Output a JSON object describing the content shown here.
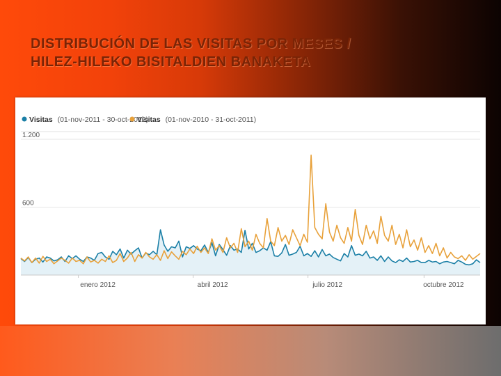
{
  "slide": {
    "title_line1": "DISTRIBUCIÓN DE LAS VISITAS POR MESES /",
    "title_line2": "HILEZ-HILEKO BISITALDIEN BANAKETA"
  },
  "colors": {
    "current_series": "#1a7fa6",
    "previous_series": "#e8a13a",
    "current_fill": "#e4f1f7"
  },
  "chart_data": {
    "type": "line",
    "legend": [
      {
        "name": "Visitas",
        "period": "(01-nov-2011 - 30-oct-2012)"
      },
      {
        "name": "Visitas",
        "period": "(01-nov-2010 - 31-oct-2011)"
      }
    ],
    "y_ticks": [
      "1.200",
      "600"
    ],
    "y_tick_values": [
      1200,
      600
    ],
    "ylim": [
      0,
      1200
    ],
    "x_tick_labels": [
      "enero 2012",
      "abril 2012",
      "julio 2012",
      "octubre 2012"
    ],
    "x_tick_dates": [
      "2012-01-01",
      "2012-04-01",
      "2012-07-01",
      "2012-10-01"
    ],
    "x_range": [
      "2011-11-01",
      "2012-10-30"
    ],
    "grid": "horizontal",
    "series": [
      {
        "name": "Visitas",
        "values": [
          145,
          120,
          155,
          110,
          140,
          150,
          115,
          160,
          150,
          125,
          135,
          160,
          120,
          170,
          145,
          170,
          140,
          120,
          160,
          150,
          130,
          190,
          200,
          160,
          140,
          210,
          180,
          230,
          150,
          220,
          185,
          215,
          240,
          150,
          195,
          180,
          210,
          180,
          400,
          265,
          210,
          250,
          240,
          300,
          160,
          250,
          235,
          260,
          230,
          215,
          265,
          200,
          285,
          170,
          270,
          225,
          175,
          260,
          220,
          230,
          200,
          395,
          230,
          280,
          200,
          215,
          240,
          220,
          295,
          170,
          165,
          195,
          270,
          175,
          185,
          200,
          255,
          170,
          190,
          165,
          215,
          160,
          225,
          170,
          185,
          155,
          140,
          125,
          190,
          160,
          260,
          175,
          185,
          170,
          210,
          150,
          160,
          130,
          170,
          120,
          160,
          125,
          110,
          135,
          120,
          150,
          115,
          120,
          130,
          110,
          110,
          130,
          115,
          120,
          100,
          115,
          120,
          110,
          100,
          130,
          115,
          95,
          90,
          100,
          135,
          110
        ]
      },
      {
        "name": "Visitas",
        "values": [
          150,
          125,
          160,
          110,
          150,
          105,
          165,
          120,
          140,
          100,
          125,
          150,
          130,
          105,
          150,
          120,
          130,
          100,
          160,
          115,
          130,
          105,
          140,
          120,
          170,
          110,
          130,
          190,
          120,
          150,
          200,
          120,
          180,
          150,
          200,
          160,
          140,
          180,
          130,
          215,
          145,
          205,
          170,
          140,
          210,
          180,
          230,
          190,
          255,
          200,
          240,
          190,
          320,
          220,
          260,
          200,
          330,
          240,
          280,
          200,
          410,
          250,
          300,
          220,
          360,
          280,
          240,
          500,
          300,
          260,
          420,
          300,
          350,
          270,
          400,
          330,
          260,
          360,
          290,
          1060,
          420,
          360,
          320,
          630,
          380,
          300,
          440,
          330,
          280,
          420,
          300,
          580,
          350,
          270,
          440,
          320,
          390,
          280,
          520,
          350,
          300,
          440,
          270,
          360,
          240,
          400,
          250,
          310,
          220,
          330,
          200,
          260,
          190,
          280,
          170,
          240,
          150,
          200,
          160,
          145,
          170,
          130,
          180,
          140,
          165,
          190
        ]
      }
    ]
  }
}
